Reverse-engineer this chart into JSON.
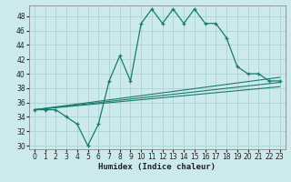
{
  "xlabel": "Humidex (Indice chaleur)",
  "bg_color": "#cceaec",
  "grid_color": "#aad4d6",
  "line_color": "#1a7a6e",
  "xlim": [
    -0.5,
    23.5
  ],
  "ylim": [
    29.5,
    49.5
  ],
  "xticks": [
    0,
    1,
    2,
    3,
    4,
    5,
    6,
    7,
    8,
    9,
    10,
    11,
    12,
    13,
    14,
    15,
    16,
    17,
    18,
    19,
    20,
    21,
    22,
    23
  ],
  "yticks": [
    30,
    32,
    34,
    36,
    38,
    40,
    42,
    44,
    46,
    48
  ],
  "main_series": {
    "x": [
      0,
      1,
      2,
      3,
      4,
      5,
      6,
      7,
      8,
      9,
      10,
      11,
      12,
      13,
      14,
      15,
      16,
      17,
      18,
      19,
      20,
      21,
      22,
      23
    ],
    "y": [
      35,
      35,
      35,
      34,
      33,
      30,
      33,
      39,
      42.5,
      39,
      47,
      49,
      47,
      49,
      47,
      49,
      47,
      47,
      45,
      41,
      40,
      40,
      39,
      39
    ]
  },
  "straight_lines": [
    {
      "x": [
        0,
        23
      ],
      "y": [
        35,
        39.5
      ]
    },
    {
      "x": [
        0,
        23
      ],
      "y": [
        35,
        38.8
      ]
    },
    {
      "x": [
        0,
        23
      ],
      "y": [
        35,
        38.2
      ]
    }
  ]
}
